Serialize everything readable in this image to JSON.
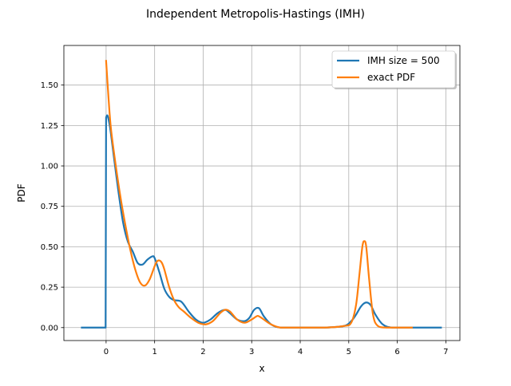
{
  "chart_data": {
    "type": "line",
    "title": "Independent Metropolis-Hastings (IMH)",
    "xlabel": "x",
    "ylabel": "PDF",
    "xlim": [
      -0.87,
      7.29
    ],
    "ylim": [
      -0.08,
      1.745
    ],
    "xticks": [
      0,
      1,
      2,
      3,
      4,
      5,
      6,
      7
    ],
    "xtick_labels": [
      "0",
      "1",
      "2",
      "3",
      "4",
      "5",
      "6",
      "7"
    ],
    "yticks": [
      0.0,
      0.25,
      0.5,
      0.75,
      1.0,
      1.25,
      1.5
    ],
    "ytick_labels": [
      "0.00",
      "0.25",
      "0.50",
      "0.75",
      "1.00",
      "1.25",
      "1.50"
    ],
    "grid": true,
    "legend_position": "upper right",
    "series": [
      {
        "name": "IMH size = 500",
        "color": "#1f77b4",
        "x": [
          -0.5,
          -0.01,
          0.0,
          0.03,
          0.08,
          0.15,
          0.25,
          0.35,
          0.45,
          0.55,
          0.65,
          0.75,
          0.85,
          0.95,
          1.0,
          1.1,
          1.2,
          1.3,
          1.4,
          1.55,
          1.7,
          1.85,
          2.0,
          2.15,
          2.3,
          2.45,
          2.55,
          2.7,
          2.85,
          2.95,
          3.05,
          3.15,
          3.25,
          3.4,
          3.6,
          4.0,
          4.5,
          4.9,
          5.05,
          5.15,
          5.25,
          5.35,
          5.45,
          5.55,
          5.7,
          5.9,
          6.3,
          6.9
        ],
        "y": [
          0.0,
          0.0,
          1.3,
          1.31,
          1.24,
          1.08,
          0.85,
          0.65,
          0.53,
          0.47,
          0.4,
          0.39,
          0.42,
          0.44,
          0.43,
          0.34,
          0.24,
          0.19,
          0.17,
          0.16,
          0.1,
          0.05,
          0.03,
          0.05,
          0.09,
          0.11,
          0.09,
          0.05,
          0.04,
          0.06,
          0.11,
          0.12,
          0.07,
          0.02,
          0.0,
          0.0,
          0.0,
          0.01,
          0.04,
          0.08,
          0.13,
          0.155,
          0.14,
          0.08,
          0.02,
          0.0,
          0.0,
          0.0
        ]
      },
      {
        "name": "exact PDF",
        "color": "#ff7f0e",
        "x": [
          0.0,
          0.05,
          0.1,
          0.2,
          0.3,
          0.4,
          0.5,
          0.6,
          0.7,
          0.8,
          0.9,
          1.0,
          1.05,
          1.1,
          1.15,
          1.2,
          1.3,
          1.4,
          1.5,
          1.6,
          1.75,
          1.9,
          2.05,
          2.2,
          2.35,
          2.45,
          2.55,
          2.7,
          2.85,
          3.0,
          3.1,
          3.15,
          3.25,
          3.4,
          3.6,
          4.0,
          4.5,
          4.9,
          5.05,
          5.15,
          5.22,
          5.28,
          5.32,
          5.36,
          5.42,
          5.5,
          5.6,
          5.8,
          6.3
        ],
        "y": [
          1.65,
          1.42,
          1.23,
          1.0,
          0.8,
          0.63,
          0.48,
          0.36,
          0.28,
          0.26,
          0.3,
          0.38,
          0.41,
          0.415,
          0.4,
          0.36,
          0.25,
          0.17,
          0.125,
          0.1,
          0.06,
          0.03,
          0.02,
          0.04,
          0.09,
          0.11,
          0.1,
          0.05,
          0.03,
          0.05,
          0.07,
          0.07,
          0.05,
          0.02,
          0.0,
          0.0,
          0.0,
          0.01,
          0.03,
          0.14,
          0.33,
          0.5,
          0.535,
          0.5,
          0.3,
          0.08,
          0.01,
          0.0,
          0.0
        ]
      }
    ]
  }
}
